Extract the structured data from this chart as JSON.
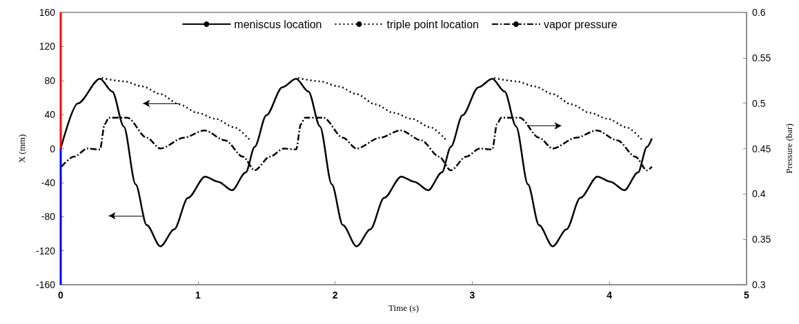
{
  "chart_data": {
    "type": "line",
    "xlabel": "Time (s)",
    "ylabel": "X (mm)",
    "y2label": "Pressure (bar)",
    "xlim": [
      0,
      5
    ],
    "xticks": [
      0,
      1,
      2,
      3,
      4,
      5
    ],
    "ylim": [
      -160,
      160
    ],
    "yticks": [
      -160,
      -120,
      -80,
      -40,
      0,
      40,
      80,
      120,
      160
    ],
    "y2lim": [
      0.3,
      0.6
    ],
    "y2ticks": [
      0.3,
      0.35,
      0.4,
      0.45,
      0.5,
      0.55,
      0.6
    ],
    "grid": false,
    "legend": "top",
    "marker": "none",
    "series": [
      {
        "name": "meniscus location",
        "color": "#000000",
        "line_style": "solid",
        "x": [
          0,
          0.125,
          0.286,
          0.376,
          0.46,
          0.546,
          0.627,
          0.727,
          0.827,
          0.928,
          1.053,
          1.148,
          1.249,
          1.349,
          1.414,
          1.499,
          1.615,
          1.716,
          1.806,
          1.89,
          1.976,
          2.057,
          2.157,
          2.257,
          2.358,
          2.483,
          2.578,
          2.679,
          2.779,
          2.844,
          2.929,
          3.045,
          3.146,
          3.236,
          3.32,
          3.406,
          3.487,
          3.587,
          3.687,
          3.788,
          3.913,
          4.008,
          4.109,
          4.209,
          4.274,
          4.31
        ],
        "values": [
          0,
          53,
          82,
          67,
          26,
          -42,
          -90,
          -115,
          -95,
          -58,
          -33,
          -39,
          -49,
          -28,
          2,
          39,
          72,
          82,
          67,
          26,
          -42,
          -90,
          -115,
          -95,
          -58,
          -33,
          -39,
          -49,
          -28,
          2,
          39,
          72,
          82,
          67,
          26,
          -42,
          -90,
          -115,
          -95,
          -58,
          -33,
          -39,
          -49,
          -28,
          2,
          12
        ]
      },
      {
        "name": "triple point location",
        "color": "#000000",
        "line_style": "dotted",
        "x": [
          0.3,
          0.46,
          0.597,
          0.727,
          0.863,
          0.998,
          1.128,
          1.264,
          1.379,
          1.55,
          1.73,
          1.89,
          2.027,
          2.157,
          2.293,
          2.428,
          2.558,
          2.694,
          2.809,
          2.98,
          3.16,
          3.32,
          3.457,
          3.587,
          3.723,
          3.858,
          3.988,
          4.124,
          4.239
        ],
        "values": [
          83,
          79,
          73,
          64,
          52,
          42,
          35,
          25,
          10,
          null,
          83,
          79,
          73,
          64,
          52,
          42,
          35,
          25,
          10,
          null,
          83,
          79,
          73,
          64,
          52,
          42,
          35,
          25,
          10
        ]
      },
      {
        "name": "vapor pressure",
        "color": "#000000",
        "line_style": "dashed",
        "axis": "y2",
        "x": [
          0.005,
          0.095,
          0.196,
          0.286,
          0.321,
          0.351,
          0.486,
          0.627,
          0.727,
          0.898,
          1.048,
          1.199,
          1.329,
          1.414,
          1.525,
          1.626,
          1.716,
          1.751,
          1.781,
          1.916,
          2.057,
          2.157,
          2.328,
          2.478,
          2.629,
          2.759,
          2.844,
          2.955,
          3.056,
          3.146,
          3.181,
          3.211,
          3.346,
          3.487,
          3.587,
          3.758,
          3.908,
          4.059,
          4.189,
          4.274,
          4.31
        ],
        "values": [
          0.43,
          0.441,
          0.45,
          0.449,
          0.477,
          0.484,
          0.484,
          0.462,
          0.45,
          0.462,
          0.47,
          0.459,
          0.441,
          0.426,
          0.441,
          0.45,
          0.449,
          0.477,
          0.484,
          0.484,
          0.462,
          0.45,
          0.462,
          0.47,
          0.459,
          0.441,
          0.426,
          0.441,
          0.45,
          0.449,
          0.477,
          0.484,
          0.484,
          0.462,
          0.45,
          0.462,
          0.47,
          0.459,
          0.441,
          0.426,
          0.43
        ]
      },
      {
        "color": "#ff0000",
        "line_style": "solid",
        "x": [
          0,
          0
        ],
        "values": [
          0,
          160
        ]
      },
      {
        "color": "#0000ff",
        "line_style": "solid",
        "x": [
          0,
          0
        ],
        "values": [
          0,
          -160
        ]
      }
    ]
  }
}
